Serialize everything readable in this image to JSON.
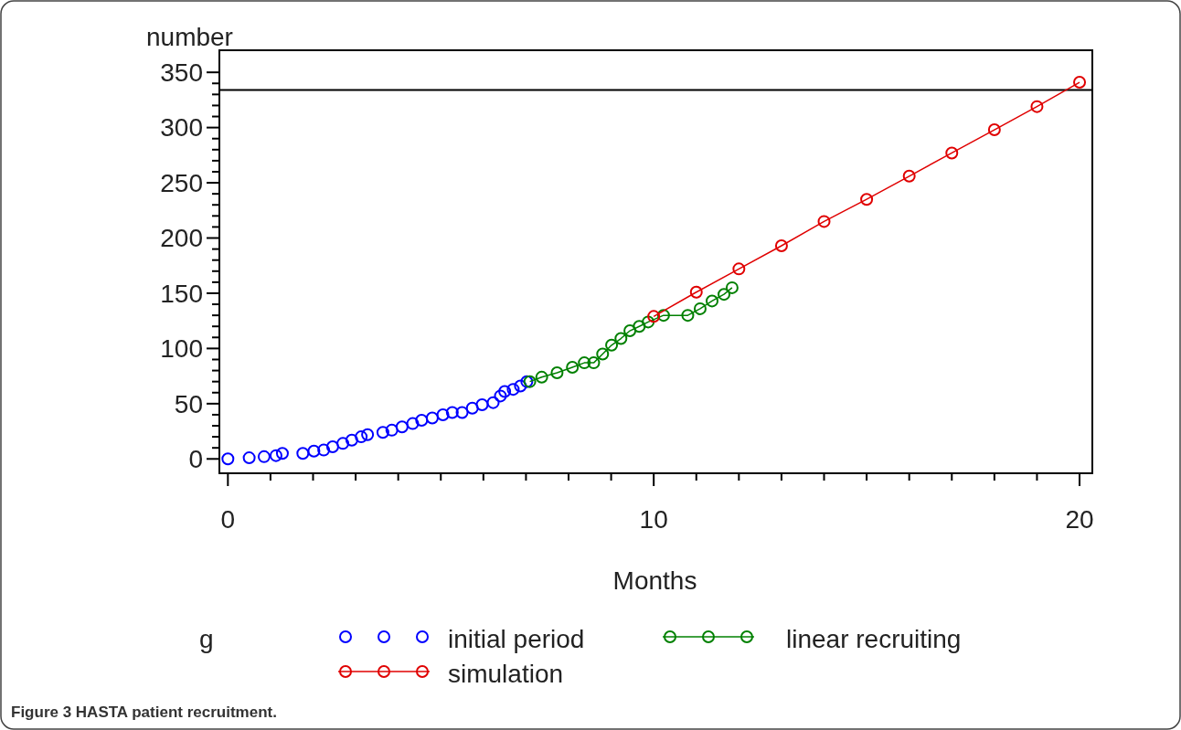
{
  "chart_data": {
    "type": "scatter",
    "title": "Figure 3 HASTA patient recruitment.",
    "xlabel": "Months",
    "ylabel": "number",
    "legend_title": "g",
    "legend": "bottom",
    "marker": "circle",
    "grid": false,
    "xlim": [
      -0.2,
      20.3
    ],
    "ylim": [
      -13,
      370
    ],
    "xticks": [
      0,
      {
        "value": 1,
        "label": null
      },
      {
        "value": 2,
        "label": null
      },
      {
        "value": 3,
        "label": null
      },
      {
        "value": 4,
        "label": null
      },
      {
        "value": 5,
        "label": null
      },
      {
        "value": 6,
        "label": null
      },
      {
        "value": 7,
        "label": null
      },
      {
        "value": 8,
        "label": null
      },
      {
        "value": 9,
        "label": null
      },
      10,
      {
        "value": 11,
        "label": null
      },
      {
        "value": 12,
        "label": null
      },
      {
        "value": 13,
        "label": null
      },
      {
        "value": 14,
        "label": null
      },
      {
        "value": 15,
        "label": null
      },
      {
        "value": 16,
        "label": null
      },
      {
        "value": 17,
        "label": null
      },
      {
        "value": 18,
        "label": null
      },
      {
        "value": 19,
        "label": null
      },
      20
    ],
    "yticks": [
      0,
      {
        "value": 10,
        "label": null
      },
      {
        "value": 20,
        "label": null
      },
      {
        "value": 30,
        "label": null
      },
      {
        "value": 40,
        "label": null
      },
      50,
      {
        "value": 60,
        "label": null
      },
      {
        "value": 70,
        "label": null
      },
      {
        "value": 80,
        "label": null
      },
      {
        "value": 90,
        "label": null
      },
      100,
      {
        "value": 110,
        "label": null
      },
      {
        "value": 120,
        "label": null
      },
      {
        "value": 130,
        "label": null
      },
      {
        "value": 140,
        "label": null
      },
      150,
      {
        "value": 160,
        "label": null
      },
      {
        "value": 170,
        "label": null
      },
      {
        "value": 180,
        "label": null
      },
      {
        "value": 190,
        "label": null
      },
      200,
      {
        "value": 210,
        "label": null
      },
      {
        "value": 220,
        "label": null
      },
      {
        "value": 230,
        "label": null
      },
      {
        "value": 240,
        "label": null
      },
      250,
      {
        "value": 260,
        "label": null
      },
      {
        "value": 270,
        "label": null
      },
      {
        "value": 280,
        "label": null
      },
      {
        "value": 290,
        "label": null
      },
      300,
      {
        "value": 310,
        "label": null
      },
      {
        "value": 320,
        "label": null
      },
      {
        "value": 330,
        "label": null
      },
      {
        "value": 340,
        "label": null
      },
      350
    ],
    "ref_lines": [
      {
        "axis": "y",
        "value": 334,
        "color": "#000000"
      }
    ],
    "series": [
      {
        "name": "initial period",
        "type": "scatter",
        "color": "#0000ff",
        "x": [
          0,
          0.5,
          0.85,
          1.13,
          1.28,
          1.76,
          2.02,
          2.25,
          2.46,
          2.7,
          2.91,
          3.13,
          3.28,
          3.64,
          3.85,
          4.09,
          4.34,
          4.55,
          4.8,
          5.05,
          5.27,
          5.5,
          5.74,
          5.97,
          6.23,
          6.4,
          6.5,
          6.7,
          6.87,
          7.02
        ],
        "values": [
          0,
          1,
          2,
          3,
          5,
          5,
          7,
          8,
          11,
          14,
          17,
          20,
          22,
          24,
          26,
          29,
          32,
          35,
          37,
          40,
          42,
          42,
          46,
          49,
          51,
          57,
          61,
          63,
          66,
          70
        ]
      },
      {
        "name": "linear recruiting",
        "type": "line",
        "color": "#008000",
        "x": [
          7.09,
          7.37,
          7.73,
          8.09,
          8.37,
          8.59,
          8.8,
          9.01,
          9.23,
          9.44,
          9.66,
          9.87,
          10.23,
          10.8,
          11.09,
          11.37,
          11.65,
          11.84
        ],
        "values": [
          70,
          74,
          78,
          83,
          87,
          87,
          95,
          103,
          109,
          116,
          120,
          124,
          130,
          130,
          136,
          143,
          149,
          155
        ]
      },
      {
        "name": "simulation",
        "type": "line",
        "color": "#e00000",
        "x": [
          10,
          11,
          12,
          13,
          14,
          15,
          16,
          17,
          18,
          19,
          20
        ],
        "values": [
          129,
          151,
          172,
          193,
          215,
          235,
          256,
          277,
          298,
          319,
          341
        ]
      }
    ]
  }
}
